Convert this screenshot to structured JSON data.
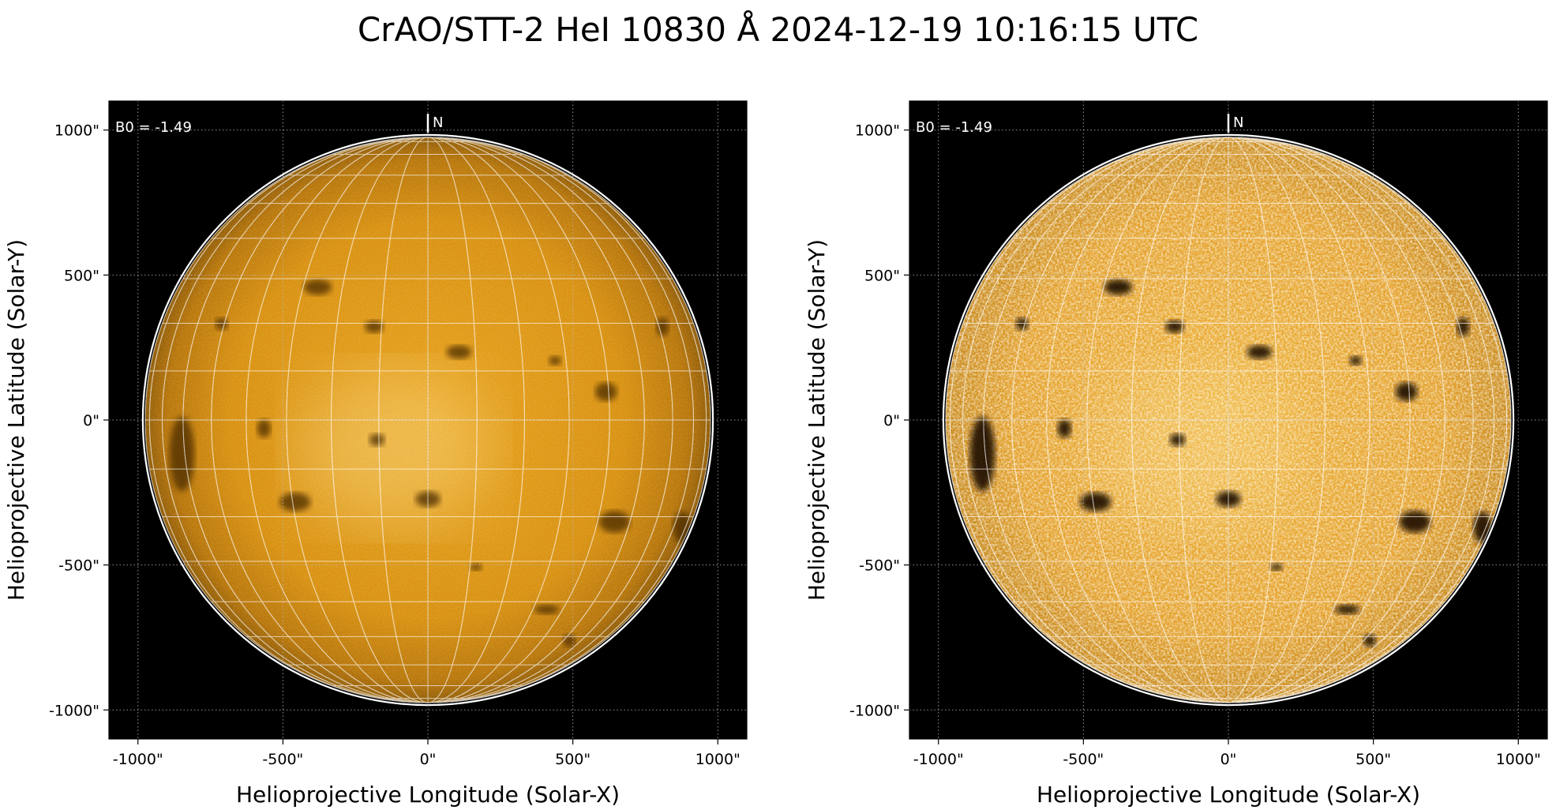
{
  "figure": {
    "title": "CrAO/STT-2 HeI 10830 Å 2024-12-19 10:16:15 UTC"
  },
  "colors": {
    "disk_base": "#d9900f",
    "disk_bright": "#f7d37a",
    "disk_dark": "#5a3a05",
    "background": "#000000",
    "grid": "#ffffff"
  },
  "panels": [
    {
      "id": "left",
      "variant": "normal-contrast",
      "xlabel": "Helioprojective Longitude (Solar-X)",
      "ylabel": "Helioprojective Latitude (Solar-Y)",
      "b0_label": "B0 = -1.49",
      "north_label": "N",
      "xticks": [
        "-1000\"",
        "-500\"",
        "0\"",
        "500\"",
        "1000\""
      ],
      "yticks": [
        "1000\"",
        "500\"",
        "0\"",
        "-500\"",
        "-1000\""
      ],
      "xlim": [
        -1100,
        1100
      ],
      "ylim": [
        -1100,
        1100
      ]
    },
    {
      "id": "right",
      "variant": "enhanced-contrast",
      "xlabel": "Helioprojective Longitude (Solar-X)",
      "ylabel": "Helioprojective Latitude (Solar-Y)",
      "b0_label": "B0 = -1.49",
      "north_label": "N",
      "xticks": [
        "-1000\"",
        "-500\"",
        "0\"",
        "500\"",
        "1000\""
      ],
      "yticks": [
        "1000\"",
        "500\"",
        "0\"",
        "-500\"",
        "-1000\""
      ],
      "xlim": [
        -1100,
        1100
      ],
      "ylim": [
        -1100,
        1100
      ]
    }
  ],
  "tick_values": [
    -1000,
    -500,
    0,
    500,
    1000
  ],
  "disk_radius_arcsec": 975
}
